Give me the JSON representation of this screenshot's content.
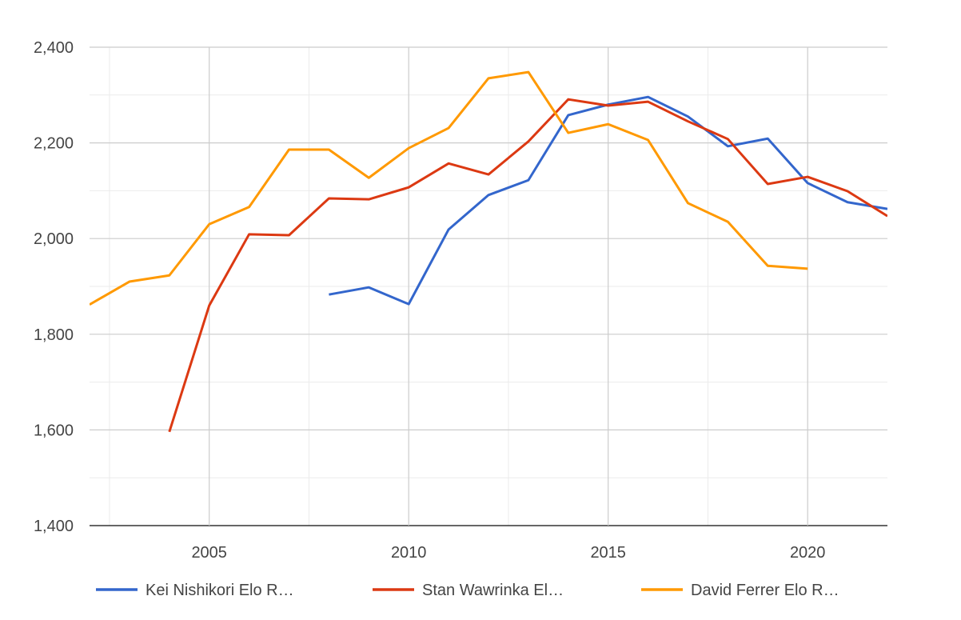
{
  "chart_data": {
    "type": "line",
    "title": "",
    "xlabel": "",
    "ylabel": "",
    "xlim": [
      2002,
      2022
    ],
    "ylim": [
      1400,
      2400
    ],
    "x_ticks": [
      2005,
      2010,
      2015,
      2020
    ],
    "x_tick_labels": [
      "2005",
      "2010",
      "2015",
      "2020"
    ],
    "y_ticks": [
      1400,
      1600,
      1800,
      2000,
      2200,
      2400
    ],
    "y_tick_labels": [
      "1,400",
      "1,600",
      "1,800",
      "2,000",
      "2,200",
      "2,400"
    ],
    "grid": true,
    "legend_position": "bottom",
    "series": [
      {
        "name": "Kei Nishikori Elo R…",
        "color": "#3366cc",
        "x": [
          2008,
          2009,
          2010,
          2011,
          2012,
          2013,
          2014,
          2015,
          2016,
          2017,
          2018,
          2019,
          2020,
          2021,
          2022
        ],
        "values": [
          1883,
          1898,
          1863,
          2019,
          2091,
          2122,
          2258,
          2280,
          2296,
          2255,
          2193,
          2209,
          2116,
          2076,
          2062
        ]
      },
      {
        "name": "Stan Wawrinka El…",
        "color": "#dc3912",
        "x": [
          2004,
          2005,
          2006,
          2007,
          2008,
          2009,
          2010,
          2011,
          2012,
          2013,
          2014,
          2015,
          2016,
          2017,
          2018,
          2019,
          2020,
          2021,
          2022
        ],
        "values": [
          1596,
          1860,
          2009,
          2007,
          2084,
          2082,
          2107,
          2157,
          2134,
          2203,
          2291,
          2278,
          2286,
          2245,
          2208,
          2114,
          2129,
          2099,
          2047
        ]
      },
      {
        "name": "David Ferrer Elo R…",
        "color": "#ff9900",
        "x": [
          2002,
          2003,
          2004,
          2005,
          2006,
          2007,
          2008,
          2009,
          2010,
          2011,
          2012,
          2013,
          2014,
          2015,
          2016,
          2017,
          2018,
          2019,
          2020
        ],
        "values": [
          1862,
          1910,
          1923,
          2030,
          2066,
          2186,
          2186,
          2127,
          2189,
          2231,
          2335,
          2348,
          2221,
          2239,
          2206,
          2074,
          2035,
          1943,
          1937
        ]
      }
    ]
  }
}
